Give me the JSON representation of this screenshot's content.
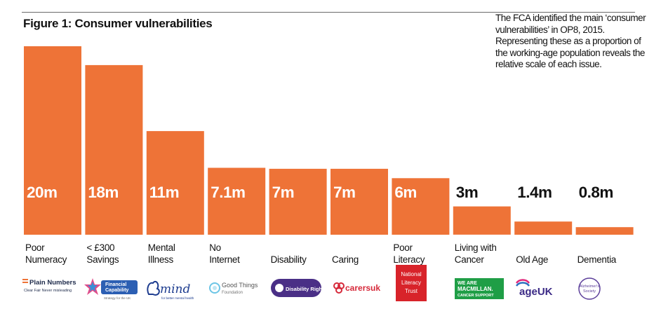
{
  "title": "Figure 1: Consumer vulnerabilities",
  "note": "The FCA identified the main ‘consumer vulnerabilities’ in OP8, 2015. Representing these as a proportion of the working-age population reveals the relative scale of each issue.",
  "colors": {
    "bar": "#EE7337",
    "label_on_bar": "#FFFFFF",
    "label_above_bar": "#111111"
  },
  "chart_data": {
    "type": "bar",
    "title": "Figure 1: Consumer vulnerabilities",
    "xlabel": "",
    "ylabel": "",
    "units": "millions",
    "ylim": [
      0,
      20
    ],
    "categories": [
      "Poor Numeracy",
      "< £300 Savings",
      "Mental Illness",
      "No Internet",
      "Disability",
      "Caring",
      "Poor Literacy",
      "Living with Cancer",
      "Old Age",
      "Dementia"
    ],
    "values": [
      20,
      18,
      11,
      7.1,
      7,
      7,
      6,
      3,
      1.4,
      0.8
    ],
    "value_labels": [
      "20m",
      "18m",
      "11m",
      "7.1m",
      "7m",
      "7m",
      "6m",
      "3m",
      "1.4m",
      "0.8m"
    ]
  },
  "category_lines": [
    [
      "Poor",
      "Numeracy"
    ],
    [
      "< £300",
      "Savings"
    ],
    [
      "Mental",
      "Illness"
    ],
    [
      "No",
      "Internet"
    ],
    [
      "",
      "Disability"
    ],
    [
      "",
      "Caring"
    ],
    [
      "Poor",
      "Literacy"
    ],
    [
      "Living with",
      "Cancer"
    ],
    [
      "",
      "Old Age"
    ],
    [
      "",
      "Dementia"
    ]
  ],
  "logos": {
    "plain_numbers": {
      "name": "Plain Numbers",
      "tagline": "Clear Fair Never misleading"
    },
    "financial_capability": {
      "line1": "Financial",
      "line2": "Capability",
      "tagline": "Strategy for the UK"
    },
    "mind": {
      "name": "mind",
      "tagline": "for better mental health"
    },
    "good_things": {
      "line1": "Good Things",
      "line2": "Foundation"
    },
    "disability_rights": {
      "name": "Disability Rights UK"
    },
    "carers_uk": {
      "name": "carersuk"
    },
    "literacy_trust": {
      "line1": "National",
      "line2": "Literacy",
      "line3": "Trust"
    },
    "macmillan": {
      "line1": "WE ARE",
      "line2": "MACMILLAN.",
      "line3": "CANCER SUPPORT"
    },
    "age_uk": {
      "name": "ageUK"
    },
    "alzheimers": {
      "line1": "Alzheimer's",
      "line2": "Society"
    }
  }
}
